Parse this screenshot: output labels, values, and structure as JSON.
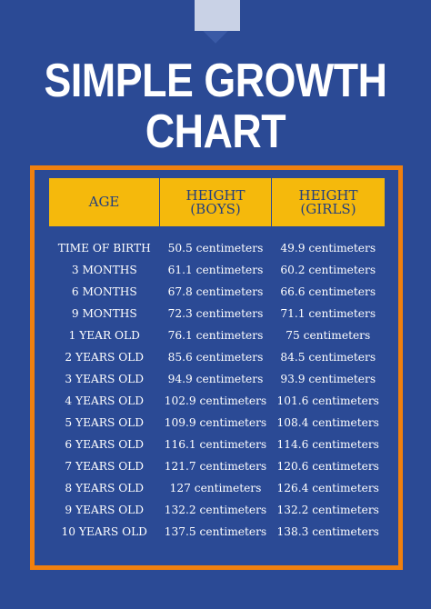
{
  "title": {
    "line1": "SIMPLE GROWTH",
    "line2": "CHART"
  },
  "table": {
    "headers": {
      "age": "AGE",
      "boys_line1": "HEIGHT",
      "boys_line2": "(BOYS)",
      "girls_line1": "HEIGHT",
      "girls_line2": "(GIRLS)"
    },
    "rows": [
      {
        "age": "TIME OF BIRTH",
        "boys": "50.5 centimeters",
        "girls": "49.9 centimeters"
      },
      {
        "age": "3 MONTHS",
        "boys": "61.1 centimeters",
        "girls": "60.2 centimeters"
      },
      {
        "age": "6 MONTHS",
        "boys": "67.8 centimeters",
        "girls": "66.6 centimeters"
      },
      {
        "age": "9 MONTHS",
        "boys": "72.3 centimeters",
        "girls": "71.1 centimeters"
      },
      {
        "age": "1 YEAR OLD",
        "boys": "76.1 centimeters",
        "girls": "75 centimeters"
      },
      {
        "age": "2 YEARS OLD",
        "boys": "85.6 centimeters",
        "girls": "84.5 centimeters"
      },
      {
        "age": "3 YEARS OLD",
        "boys": "94.9 centimeters",
        "girls": "93.9 centimeters"
      },
      {
        "age": "4 YEARS OLD",
        "boys": "102.9 centimeters",
        "girls": "101.6 centimeters"
      },
      {
        "age": "5 YEARS OLD",
        "boys": "109.9 centimeters",
        "girls": "108.4 centimeters"
      },
      {
        "age": "6 YEARS OLD",
        "boys": "116.1 centimeters",
        "girls": "114.6 centimeters"
      },
      {
        "age": "7 YEARS OLD",
        "boys": "121.7 centimeters",
        "girls": "120.6 centimeters"
      },
      {
        "age": "8 YEARS OLD",
        "boys": "127 centimeters",
        "girls": "126.4 centimeters"
      },
      {
        "age": "9 YEARS OLD",
        "boys": "132.2 centimeters",
        "girls": "132.2 centimeters"
      },
      {
        "age": "10 YEARS OLD",
        "boys": "137.5 centimeters",
        "girls": "138.3 centimeters"
      }
    ]
  },
  "colors": {
    "background": "#2b4a95",
    "header_fill": "#f5b90c",
    "frame_border": "#f0800e",
    "header_text": "#24407e",
    "body_text": "#ffffff"
  }
}
